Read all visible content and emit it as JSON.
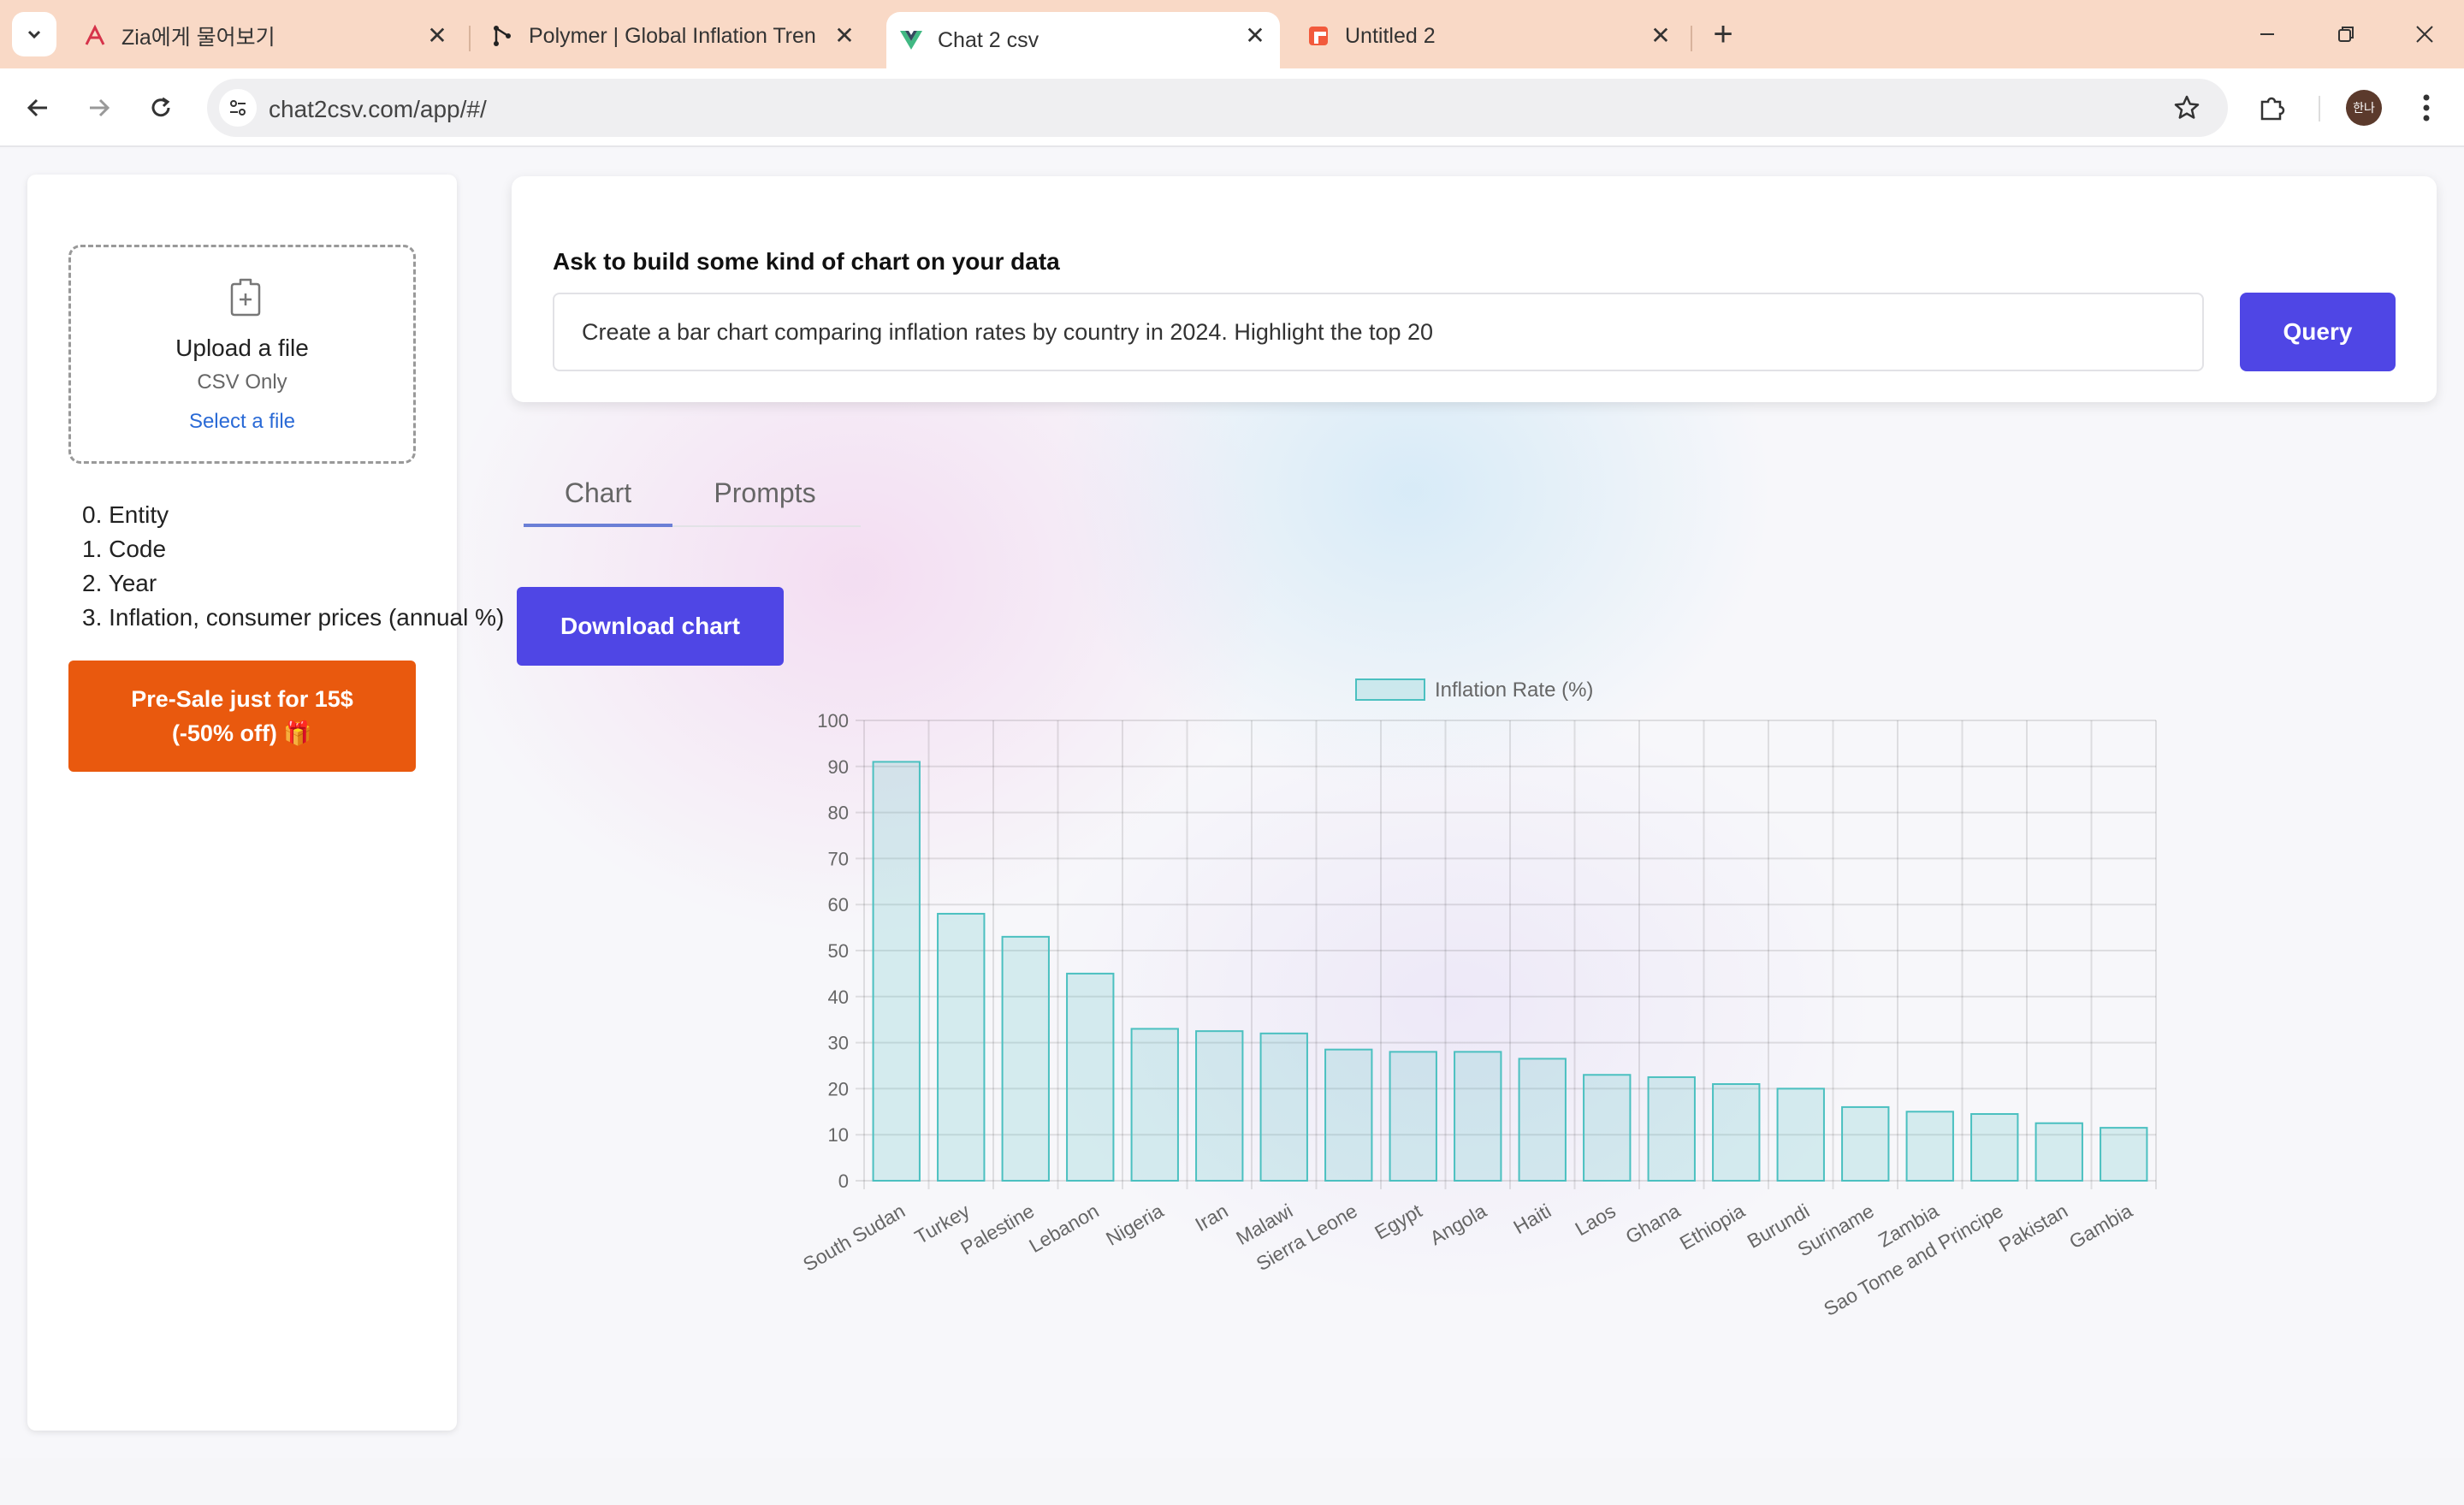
{
  "browser": {
    "tabs": [
      {
        "title": "Zia에게 물어보기",
        "icon": "zia-icon"
      },
      {
        "title": "Polymer | Global Inflation Tren",
        "icon": "polymer-icon"
      },
      {
        "title": "Chat 2 csv",
        "icon": "vue-icon"
      },
      {
        "title": "Untitled 2",
        "icon": "doc-icon"
      }
    ],
    "url": "chat2csv.com/app/#/",
    "profile_initials": "한나"
  },
  "sidebar": {
    "upload_title": "Upload a file",
    "upload_sub": "CSV Only",
    "upload_link": "Select a file",
    "columns": [
      "0. Entity",
      "1. Code",
      "2. Year",
      "3. Inflation, consumer prices (annual %)"
    ],
    "presale_line1": "Pre-Sale just for 15$",
    "presale_line2": "(-50% off) 🎁"
  },
  "query": {
    "label": "Ask to build some kind of chart on your data",
    "value": "Create a bar chart comparing inflation rates by country in 2024. Highlight the top 20",
    "button": "Query"
  },
  "view_tabs": {
    "chart": "Chart",
    "prompts": "Prompts",
    "active": "Chart"
  },
  "download_label": "Download chart",
  "colors": {
    "accent": "#4f46e5",
    "presale": "#e9590e",
    "bar_fill": "rgba(75,192,192,0.2)",
    "bar_border": "#4bc0c0"
  },
  "chart_data": {
    "type": "bar",
    "legend": "Inflation Rate (%)",
    "legend_position": "top",
    "grid": true,
    "ylim": [
      0,
      100
    ],
    "yticks": [
      0,
      10,
      20,
      30,
      40,
      50,
      60,
      70,
      80,
      90,
      100
    ],
    "categories": [
      "South Sudan",
      "Turkey",
      "Palestine",
      "Lebanon",
      "Nigeria",
      "Iran",
      "Malawi",
      "Sierra Leone",
      "Egypt",
      "Angola",
      "Haiti",
      "Laos",
      "Ghana",
      "Ethiopia",
      "Burundi",
      "Suriname",
      "Zambia",
      "Sao Tome and Principe",
      "Pakistan",
      "Gambia"
    ],
    "series": [
      {
        "name": "Inflation Rate (%)",
        "values": [
          91,
          58,
          53,
          45,
          33,
          32.5,
          32,
          28.5,
          28,
          28,
          26.5,
          23,
          22.5,
          21,
          20,
          16,
          15,
          14.5,
          12.5,
          11.5
        ]
      }
    ]
  }
}
